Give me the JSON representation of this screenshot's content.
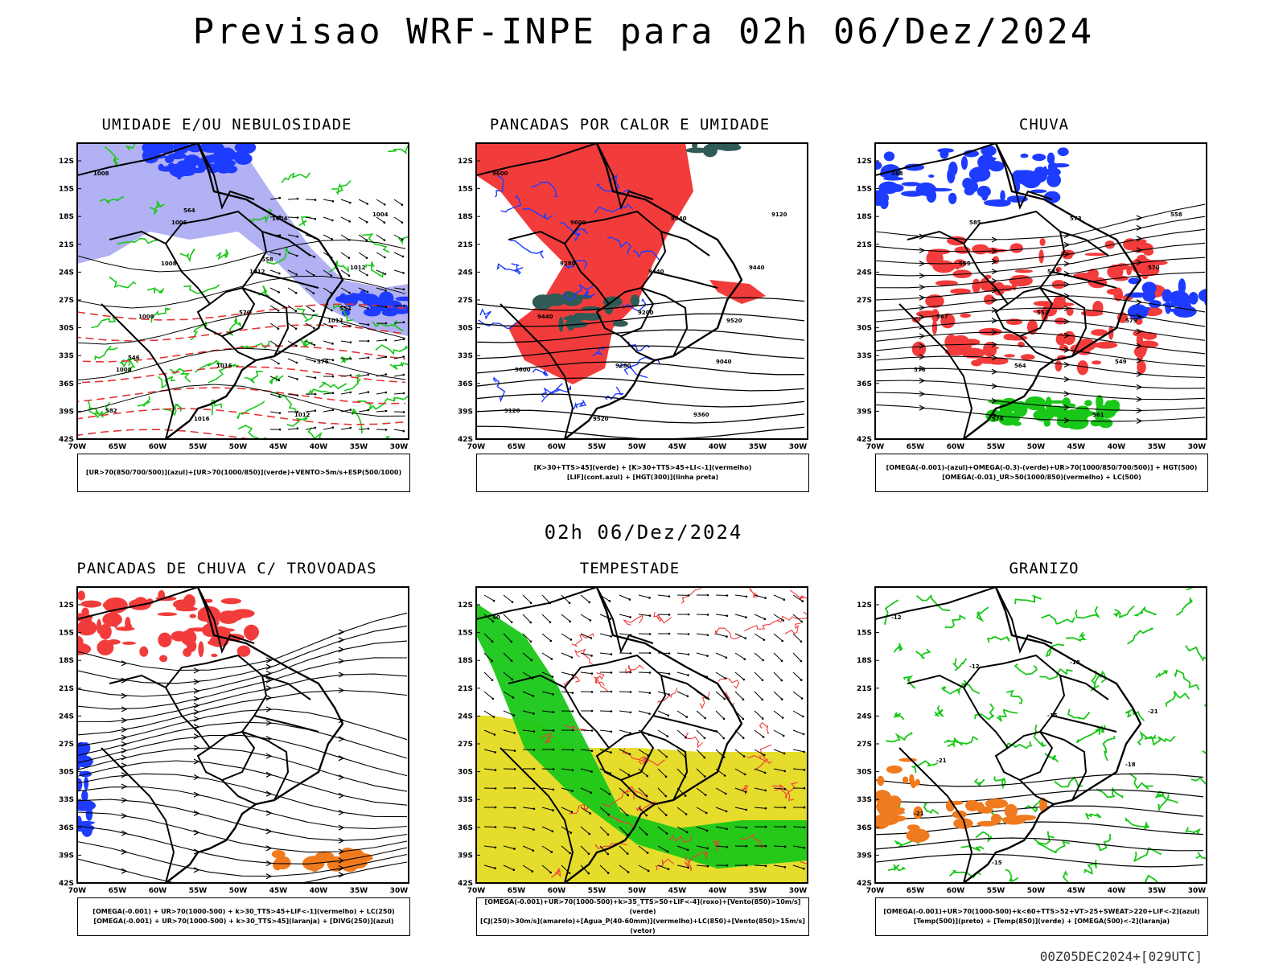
{
  "title": "Previsao WRF-INPE  para 02h 06/Dez/2024",
  "mid_title": "02h 06/Dez/2024",
  "footer": "00Z05DEC2024+[029UTC]",
  "axes": {
    "lat_labels": [
      "12S",
      "15S",
      "18S",
      "21S",
      "24S",
      "27S",
      "30S",
      "33S",
      "36S",
      "39S",
      "42S"
    ],
    "lon_labels": [
      "70W",
      "65W",
      "60W",
      "55W",
      "50W",
      "45W",
      "40W",
      "35W",
      "30W"
    ]
  },
  "colors": {
    "blue": "#1e3cff",
    "lightblue": "#a9a9f2",
    "green": "#19c719",
    "red": "#f23c3c",
    "darkteal": "#2f5a55",
    "yellow": "#e5dc2c",
    "orange": "#f07a1e",
    "black": "#000000"
  },
  "panels": [
    {
      "id": "umidade",
      "title": "UMIDADE E/OU NEBULOSIDADE",
      "legend": [
        "[UR>70(850/700/500)](azul)+[UR>70(1000/850)](verde)+VENTO>5m/s+ESP(500/1000)"
      ],
      "labels": [
        "1008",
        "1006",
        "1012",
        "1012",
        "1008",
        "1016",
        "1004",
        "1012",
        "1008",
        "1016",
        "1012",
        "1004",
        "1008",
        "570",
        "576",
        "582",
        "564",
        "558",
        "552",
        "546"
      ]
    },
    {
      "id": "pancadas",
      "title": "PANCADAS POR CALOR E UMIDADE",
      "legend": [
        "[K>30+TTS>45](verde) + [K>30+TTS>45+LI<-1](vermelho)",
        "[LIF](cont.azul) + [HGT(300)](linha preta)"
      ],
      "labels": [
        "9600",
        "9600",
        "9440",
        "9520",
        "9600",
        "9520",
        "9340",
        "9440",
        "9440",
        "9280",
        "9360",
        "9120",
        "9280",
        "9200",
        "9040",
        "9120"
      ]
    },
    {
      "id": "chuva",
      "title": "CHUVA",
      "legend": [
        "[OMEGA(-0.001)-(azul)+OMEGA(-0.3)-(verde)+UR>70(1000/850/700/500)] + HGT(500)",
        "[OMEGA(-0.01)_UR>50(1000/850)(vermelho) + LC(500)"
      ],
      "labels": [
        "588",
        "585",
        "582",
        "579",
        "576",
        "576",
        "573",
        "570",
        "567",
        "564",
        "561",
        "558",
        "555",
        "552",
        "549"
      ]
    },
    {
      "id": "trovoadas",
      "title": "PANCADAS DE CHUVA C/ TROVOADAS",
      "legend": [
        "[OMEGA(-0.001) + UR>70(1000-500) + k>30_TTS>45+LIF<-1](vermelho) + LC(250)",
        "[OMEGA(-0.001) + UR>70(1000-500) + k>30_TTS>45](laranja) + [DIVG(250)](azul)"
      ],
      "labels": []
    },
    {
      "id": "tempestade",
      "title": "TEMPESTADE",
      "legend": [
        "[OMEGA(-0.001)+UR>70(1000-500)+k>35_TTS>50+LIF<-4](roxo)+[Vento(850)>10m/s](verde)",
        "[CJ(250)>30m/s](amarelo)+[Agua_P(40-60mm)](vermelho)+LC(850)+[Vento(850)>15m/s](vetor)"
      ],
      "labels": [
        "40"
      ]
    },
    {
      "id": "granizo",
      "title": "GRANIZO",
      "legend": [
        "[OMEGA(-0.001)+UR>70(1000-500)+k<60+TTS>52+VT>25+SWEAT>220+LIF<-2](azul)",
        "[Temp(500)](preto) + [Temp(850)](verde) + [OMEGA(500)<-2](laranja)"
      ],
      "labels": [
        "-12",
        "-12",
        "-15",
        "-18",
        "-21",
        "-15",
        "-18",
        "-21",
        "-21"
      ]
    }
  ]
}
